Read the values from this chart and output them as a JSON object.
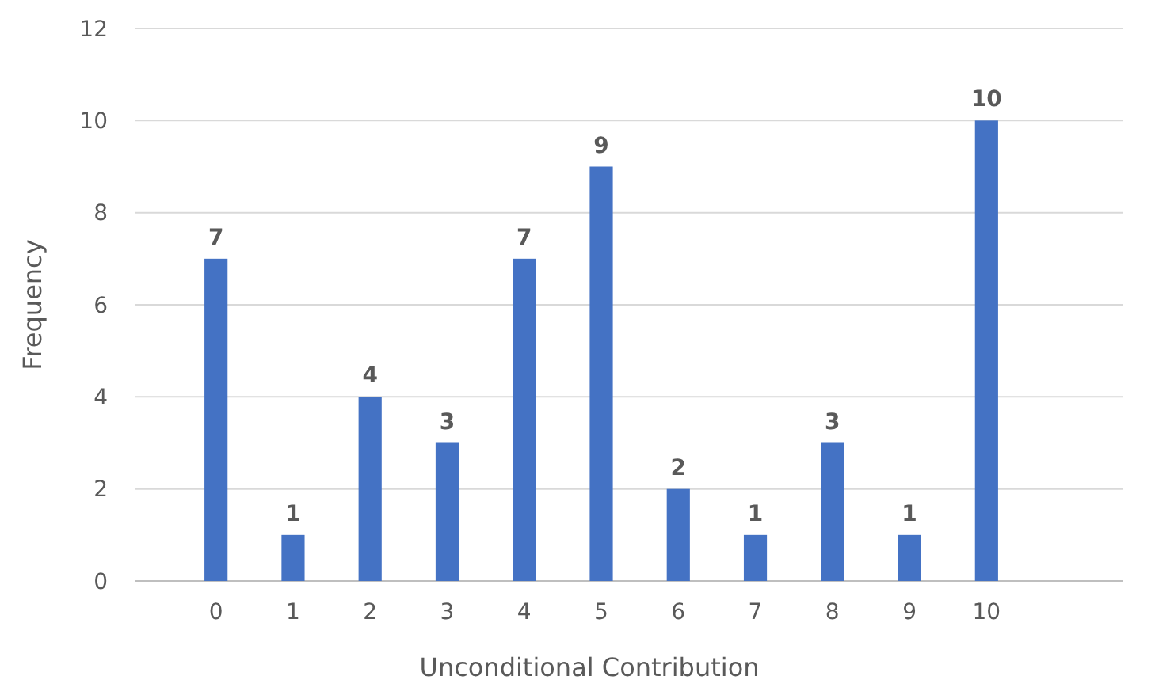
{
  "chart_data": {
    "type": "bar",
    "xlabel": "Unconditional Contribution",
    "ylabel": "Frequency",
    "categories": [
      "0",
      "1",
      "2",
      "3",
      "4",
      "5",
      "6",
      "7",
      "8",
      "9",
      "10"
    ],
    "values": [
      7,
      1,
      4,
      3,
      7,
      9,
      2,
      1,
      3,
      1,
      10
    ],
    "color": "#4472c4",
    "ylim": [
      0,
      12
    ],
    "yticks": [
      0,
      2,
      4,
      6,
      8,
      10,
      12
    ],
    "grid": "y",
    "data_labels": true
  }
}
